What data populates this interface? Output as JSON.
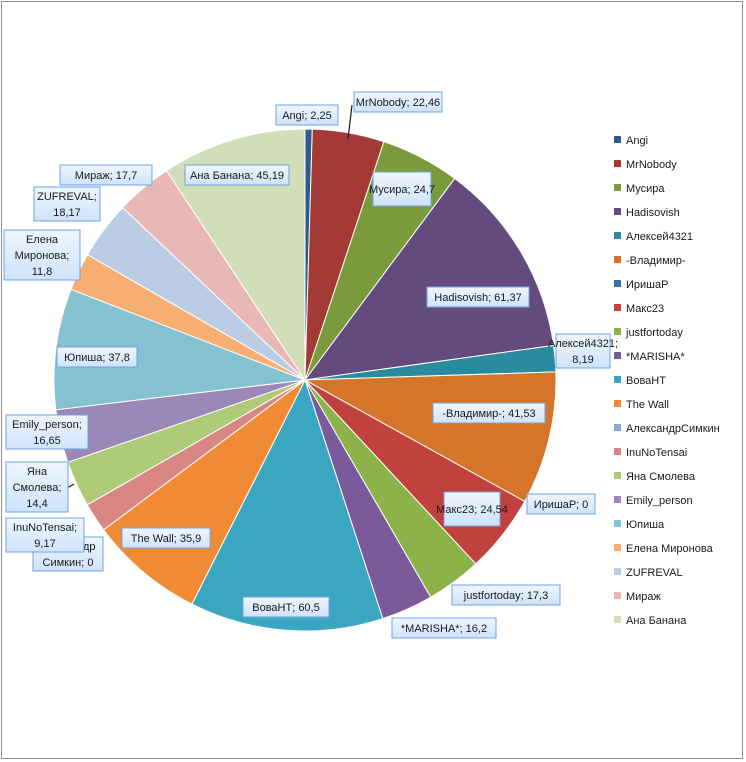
{
  "chart_data": {
    "type": "pie",
    "title": "",
    "legend_position": "right",
    "label_format": "{name}; {value}",
    "start_angle_deg": 0,
    "slices": [
      {
        "name": "Angi",
        "value": 2.25,
        "label": "Angi; 2,25",
        "color": "#2E5A8C"
      },
      {
        "name": "MrNobody",
        "value": 22.46,
        "label": "MrNobody; 22,46",
        "color": "#A33A36"
      },
      {
        "name": "Мусира",
        "value": 24.7,
        "label": "Мусира; 24,7",
        "color": "#7A9A3C"
      },
      {
        "name": "Hadisovish",
        "value": 61.37,
        "label": "Hadisovish; 61,37",
        "color": "#634C7D"
      },
      {
        "name": "Алексей4321",
        "value": 8.19,
        "label": "Алексей4321; 8,19",
        "color": "#2B8B9E"
      },
      {
        "name": "-Владимир-",
        "value": 41.53,
        "label": "-Владимир-; 41,53",
        "color": "#D4752A"
      },
      {
        "name": "ИришаР",
        "value": 0,
        "label": "ИришаР; 0",
        "color": "#3A6FA8"
      },
      {
        "name": "Макс23",
        "value": 24.54,
        "label": "Макс23; 24,54",
        "color": "#C0413D"
      },
      {
        "name": "justfortoday",
        "value": 17.3,
        "label": "justfortoday; 17,3",
        "color": "#8BB34A"
      },
      {
        "name": "*MARISHA*",
        "value": 16.2,
        "label": "*MARISHA*; 16,2",
        "color": "#7A5A9A"
      },
      {
        "name": "ВоваНТ",
        "value": 60.5,
        "label": "ВоваНТ; 60,5",
        "color": "#3BA6C2"
      },
      {
        "name": "The Wall",
        "value": 35.9,
        "label": "The Wall; 35,9",
        "color": "#F08A35"
      },
      {
        "name": "АлександрСимкин",
        "value": 0,
        "label": "Александр Симкин; 0",
        "color": "#8EA9CF"
      },
      {
        "name": "InuNoTensai",
        "value": 9.17,
        "label": "InuNoTensai; 9,17",
        "color": "#D88683"
      },
      {
        "name": "Яна Смолева",
        "value": 14.4,
        "label": "Яна Смолева; 14,4",
        "color": "#AFCB79"
      },
      {
        "name": "Emily_person",
        "value": 16.65,
        "label": "Emily_person; 16,65",
        "color": "#9C88B6"
      },
      {
        "name": "Юпиша",
        "value": 37.8,
        "label": "Юпиша; 37,8",
        "color": "#84C2D2"
      },
      {
        "name": "Елена Миронова",
        "value": 11.8,
        "label": "Елена Миронова; 11,8",
        "color": "#F7AE73"
      },
      {
        "name": "ZUFREVAL",
        "value": 18.17,
        "label": "ZUFREVAL; 18,17",
        "color": "#B9CCE4"
      },
      {
        "name": "Мираж",
        "value": 17.7,
        "label": "Мираж; 17,7",
        "color": "#E8B8B6"
      },
      {
        "name": "Ана Банана",
        "value": 45.19,
        "label": "Ана Банана; 45,19",
        "color": "#D2DEB8"
      }
    ]
  }
}
